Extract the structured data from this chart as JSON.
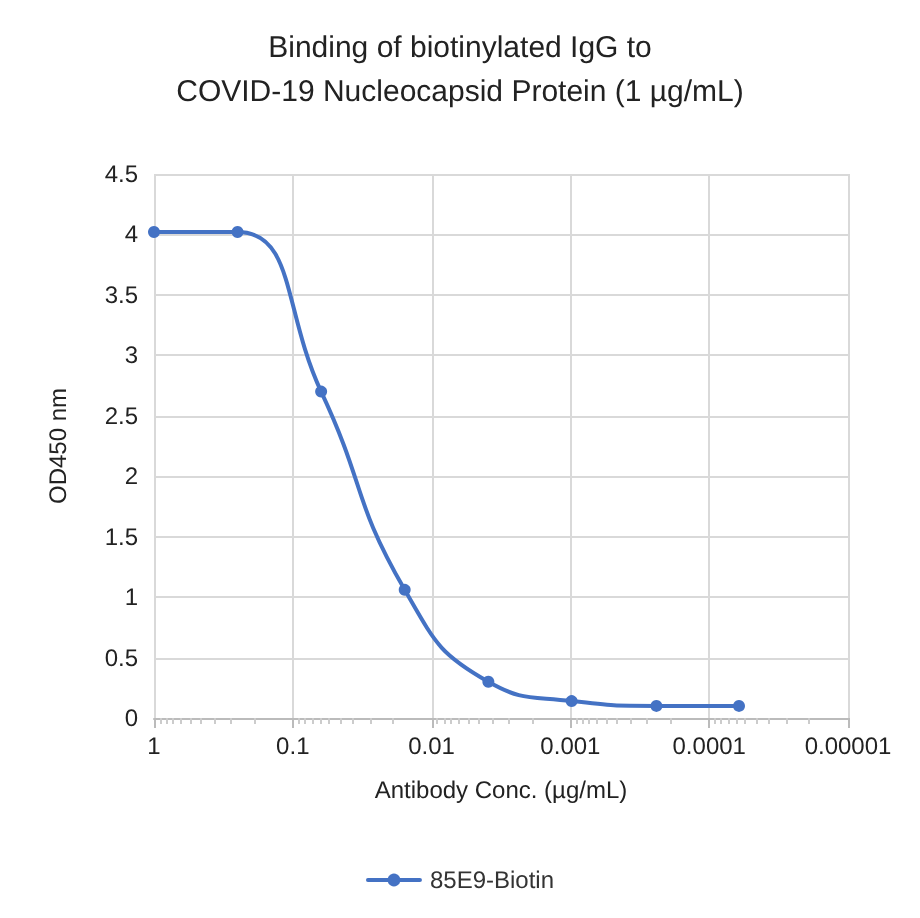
{
  "chart_data": {
    "type": "line",
    "title": "Binding of biotinylated IgG to\nCOVID-19 Nucleocapsid Protein (1 µg/mL)",
    "xlabel": "Antibody Conc. (µg/mL)",
    "ylabel": "OD450 nm",
    "x": [
      1,
      0.25,
      0.0625,
      0.015625,
      0.0039,
      0.00098,
      0.00024,
      6.1e-05
    ],
    "series": [
      {
        "name": "85E9-Biotin",
        "color": "#4472c4",
        "values": [
          4.02,
          4.02,
          2.7,
          1.06,
          0.3,
          0.14,
          0.1,
          0.1
        ]
      }
    ],
    "log": "x",
    "xlim": [
      1,
      1e-05
    ],
    "xticks": [
      1,
      0.1,
      0.01,
      0.001,
      0.0001,
      {
        "value": 1e-05,
        "label": "0.00001"
      }
    ],
    "ylim": [
      0,
      4.5
    ],
    "yticks": [
      0,
      0.5,
      1,
      1.5,
      2,
      2.5,
      3,
      3.5,
      4,
      4.5
    ],
    "grid": true,
    "legend": "bottom",
    "marker": "circle",
    "line_style": "solid"
  }
}
